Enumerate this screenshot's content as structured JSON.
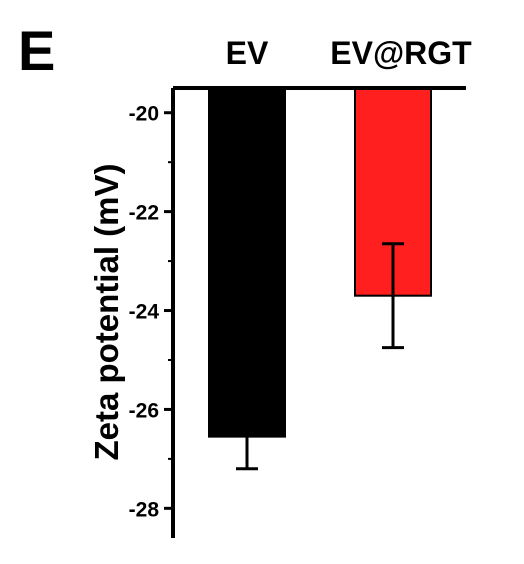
{
  "panel_label": "E",
  "chart_data": {
    "type": "bar",
    "categories": [
      "EV",
      "EV@RGT"
    ],
    "values": [
      -26.55,
      -23.7
    ],
    "errors": [
      0.65,
      1.05
    ],
    "colors": [
      "#000000",
      "#ff1f1f"
    ],
    "ylabel": "Zeta potential (mV)",
    "ylim": [
      -28.6,
      -19.5
    ],
    "yticks": [
      -20,
      -22,
      -24,
      -26,
      -28
    ],
    "ytick_labels": [
      "-20",
      "-22",
      "-24",
      "-26",
      "-28"
    ],
    "category_axis": "top"
  }
}
